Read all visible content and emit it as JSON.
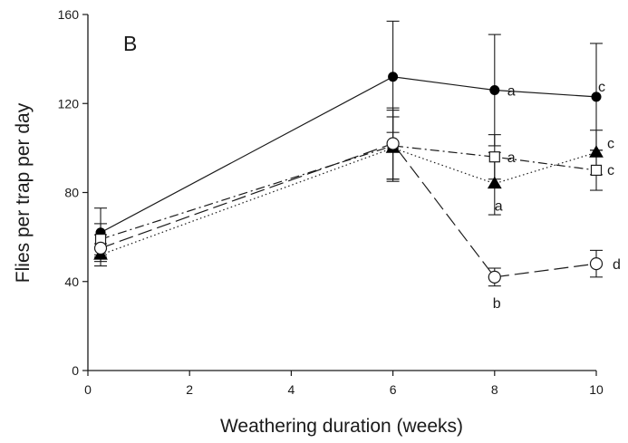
{
  "chart_data": {
    "type": "line",
    "panel_label": "B",
    "xlabel": "Weathering duration (weeks)",
    "ylabel": "Flies per trap per day",
    "xlim": [
      0,
      10
    ],
    "ylim": [
      0,
      160
    ],
    "xticks": [
      "0",
      "2",
      "4",
      "6",
      "8",
      "10"
    ],
    "yticks": [
      "0",
      "40",
      "80",
      "120",
      "160"
    ],
    "grid": false,
    "legend": "none",
    "series": [
      {
        "marker": "filled-circle",
        "line_style": "solid",
        "x": [
          0.25,
          6,
          8,
          10
        ],
        "y": [
          62,
          132,
          126,
          123
        ],
        "err": [
          11,
          25,
          25,
          24
        ],
        "point_labels": [
          "",
          "",
          "a",
          "c"
        ]
      },
      {
        "marker": "open-square",
        "line_style": "dash-dot",
        "x": [
          0.25,
          6,
          8,
          10
        ],
        "y": [
          59,
          101,
          96,
          90
        ],
        "err": [
          7,
          16,
          10,
          9
        ],
        "point_labels": [
          "",
          "",
          "a",
          "c"
        ]
      },
      {
        "marker": "filled-triangle",
        "line_style": "dotted",
        "x": [
          0.25,
          6,
          8,
          10
        ],
        "y": [
          52,
          100,
          84,
          98
        ],
        "err": [
          5,
          14,
          14,
          10
        ],
        "point_labels": [
          "",
          "",
          "a",
          "c"
        ]
      },
      {
        "marker": "open-circle",
        "line_style": "long-dash",
        "x": [
          0.25,
          6,
          8,
          10
        ],
        "y": [
          55,
          102,
          42,
          48
        ],
        "err": [
          6,
          16,
          4,
          6
        ],
        "point_labels": [
          "",
          "",
          "b",
          "d"
        ]
      }
    ]
  }
}
